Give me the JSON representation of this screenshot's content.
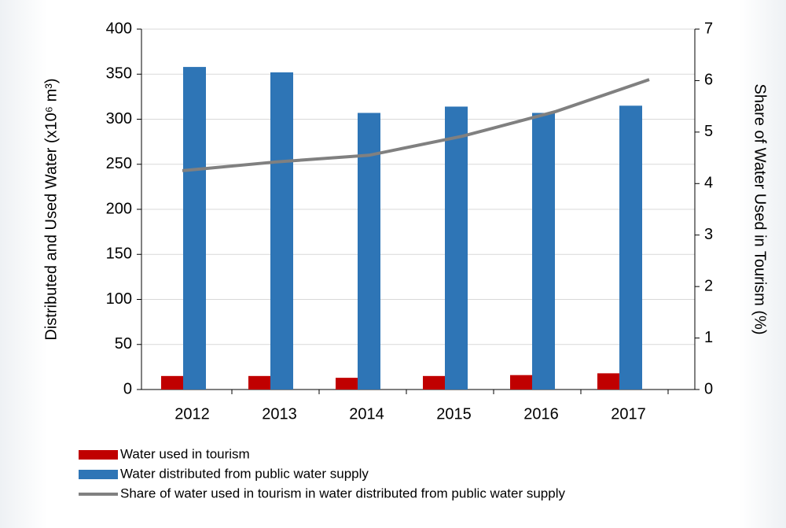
{
  "chart_data": {
    "type": "bar",
    "categories": [
      "2012",
      "2013",
      "2014",
      "2015",
      "2016",
      "2017"
    ],
    "series": [
      {
        "name": "Water used in tourism",
        "color": "#c00000",
        "values": [
          15,
          15,
          13,
          15,
          16,
          18
        ]
      },
      {
        "name": "Water distributed from public water supply",
        "color": "#2e75b6",
        "values": [
          358,
          352,
          307,
          314,
          307,
          315
        ]
      },
      {
        "name": "Share of water used in tourism in water distributed from public water supply",
        "color": "#808080",
        "type": "line",
        "axis": "y2",
        "values": [
          4.25,
          4.42,
          4.55,
          4.92,
          5.4,
          6.02
        ]
      }
    ],
    "ylabel": "Distributed and Used Water (x10⁶ m³)",
    "y2label": "Share of Water Used in Tourism (%)",
    "ylim": [
      0,
      400
    ],
    "yticks": [
      0,
      50,
      100,
      150,
      200,
      250,
      300,
      350,
      400
    ],
    "y2lim": [
      0,
      7
    ],
    "y2ticks": [
      0,
      1,
      2,
      3,
      4,
      5,
      6,
      7
    ],
    "grid": true,
    "legend": "bottom"
  }
}
